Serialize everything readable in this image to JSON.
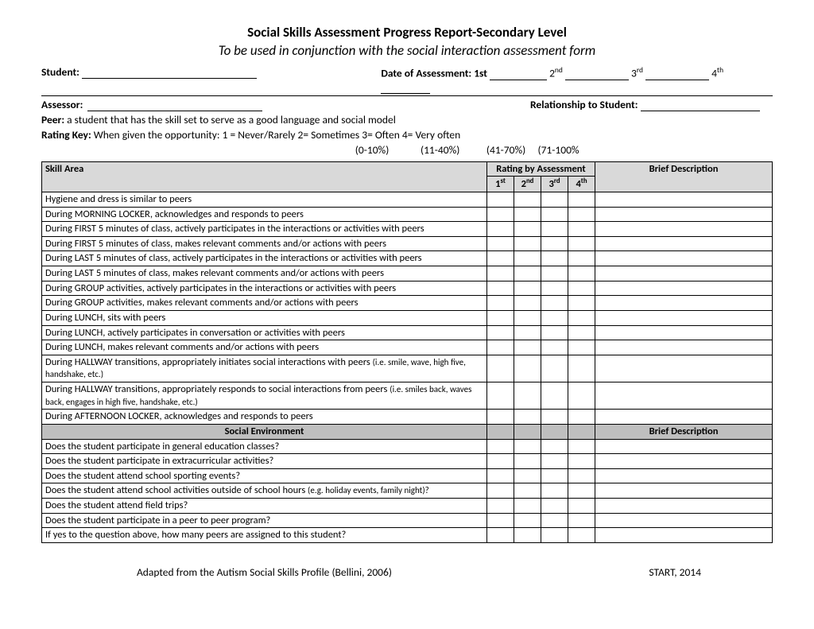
{
  "title": "Social Skills Assessment Progress Report-Secondary Level",
  "subtitle": "To be used in conjunction with the social interaction assessment form",
  "labels": {
    "student": "Student:",
    "date_of_assessment": "Date of Assessment: 1st",
    "second": "2",
    "nd": "nd",
    "third": "3",
    "rd": "rd",
    "fourth": "4",
    "th": "th",
    "assessor": "Assessor:",
    "relationship": "Relationship to Student:",
    "peer_label": "Peer:",
    "peer_text": " a student that has the skill set to serve as a good language and social model",
    "rating_key_label": "Rating Key:",
    "rating_key_text": " When given the opportunity: 1 = Never/Rarely      2= Sometimes        3= Often      4= Very often",
    "rating_pct": "                                                      (0-10%)             (11-40%)           (41-70%)     (71-100%"
  },
  "table": {
    "headers": {
      "skill_area": "Skill Area",
      "rating_by": "Rating by Assessment",
      "brief_desc": "Brief Description",
      "r1": "1",
      "r1s": "st",
      "r2": "2",
      "r2s": "nd",
      "r3": "3",
      "r3s": "rd",
      "r4": "4",
      "r4s": "th",
      "social_env": "Social Environment"
    },
    "skills": [
      "Hygiene and dress is similar to peers",
      "During MORNING LOCKER, acknowledges and responds to peers",
      "During FIRST 5 minutes of class, actively participates in the interactions or activities with peers",
      "During FIRST 5 minutes of class, makes relevant comments and/or actions with peers",
      "During LAST 5 minutes of class, actively participates in the interactions or activities with peers",
      "During LAST 5 minutes of class, makes relevant comments and/or actions with peers",
      "During GROUP activities, actively participates in the interactions or activities with peers",
      "During GROUP activities, makes relevant comments and/or actions with peers",
      "During LUNCH, sits with peers",
      "During LUNCH, actively participates in conversation or activities with peers",
      "During LUNCH, makes relevant comments and/or actions with peers"
    ],
    "skill_hallway1_a": "During HALLWAY transitions, appropriately initiates social interactions with peers ",
    "skill_hallway1_b": "(i.e. smile, wave, high five, handshake, etc.)",
    "skill_hallway2_a": "During HALLWAY transitions, appropriately responds to social interactions from peers ",
    "skill_hallway2_b": "(i.e. smiles back, waves back, engages in high five, handshake, etc.)",
    "skill_afternoon": "During AFTERNOON LOCKER, acknowledges and responds to peers",
    "env": [
      "Does the student participate in general education classes?",
      "Does the student participate in extracurricular activities?",
      "Does the student attend school sporting events?"
    ],
    "env_outside_a": "Does the student attend school activities outside of school hours ",
    "env_outside_b": "(e.g. holiday events, family night)?",
    "env2": [
      "Does the student attend field trips?",
      "Does the student participate in a peer to peer program?",
      "If yes to the question above, how many peers are assigned to this student?"
    ]
  },
  "footer": {
    "left": "Adapted from the Autism Social Skills Profile (Bellini, 2006)",
    "right": "START, 2014"
  }
}
